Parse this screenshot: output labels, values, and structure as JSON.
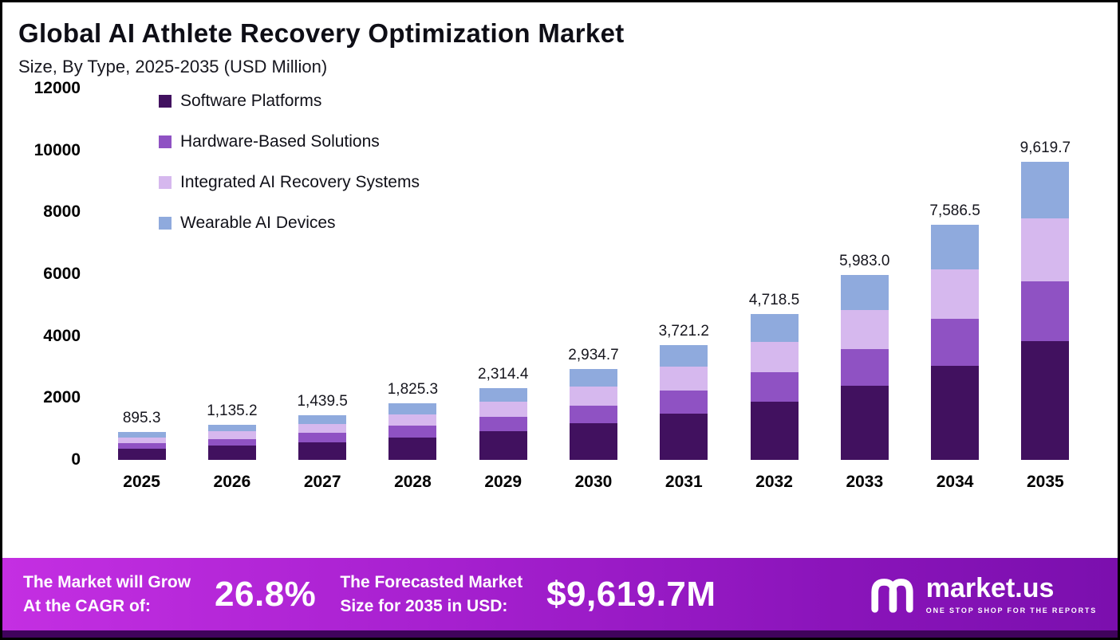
{
  "title": "Global AI Athlete Recovery Optimization Market",
  "subtitle": "Size, By Type, 2025-2035 (USD Million)",
  "chart_data": {
    "type": "bar",
    "stacked": true,
    "title": "Global AI Athlete Recovery Optimization Market",
    "subtitle": "Size, By Type, 2025-2035 (USD Million)",
    "xlabel": "",
    "ylabel": "USD Million",
    "ylim": [
      0,
      12000
    ],
    "yticks": [
      0,
      2000,
      4000,
      6000,
      8000,
      10000,
      12000
    ],
    "grid": false,
    "legend_position": "top-left",
    "categories": [
      "2025",
      "2026",
      "2027",
      "2028",
      "2029",
      "2030",
      "2031",
      "2032",
      "2033",
      "2034",
      "2035"
    ],
    "totals": [
      895.3,
      1135.2,
      1439.5,
      1825.3,
      2314.4,
      2934.7,
      3721.2,
      4718.5,
      5983.0,
      7586.5,
      9619.7
    ],
    "total_labels": [
      "895.3",
      "1,135.2",
      "1,439.5",
      "1,825.3",
      "2,314.4",
      "2,934.7",
      "3,721.2",
      "4,718.5",
      "5,983.0",
      "7,586.5",
      "9,619.7"
    ],
    "series": [
      {
        "name": "Software Platforms",
        "color": "#41115f",
        "values": [
          358.1,
          454.1,
          575.8,
          730.1,
          925.8,
          1173.9,
          1488.5,
          1887.4,
          2393.2,
          3034.6,
          3847.9
        ]
      },
      {
        "name": "Hardware-Based Solutions",
        "color": "#8f52c3",
        "values": [
          179.1,
          227.0,
          287.9,
          365.1,
          462.9,
          586.9,
          744.2,
          943.7,
          1196.6,
          1517.3,
          1923.9
        ]
      },
      {
        "name": "Integrated AI Recovery Systems",
        "color": "#d6b8ee",
        "values": [
          188.0,
          238.4,
          302.3,
          383.3,
          486.0,
          616.3,
          781.5,
          990.9,
          1256.4,
          1593.2,
          2020.1
        ]
      },
      {
        "name": "Wearable AI Devices",
        "color": "#8faadd",
        "values": [
          170.1,
          215.7,
          273.5,
          346.8,
          439.7,
          557.6,
          707.0,
          896.5,
          1136.8,
          1441.4,
          1827.8
        ]
      }
    ]
  },
  "footer": {
    "cagr_label_line1": "The Market will Grow",
    "cagr_label_line2": "At the CAGR of:",
    "cagr_value": "26.8%",
    "forecast_label_line1": "The Forecasted Market",
    "forecast_label_line2": "Size for 2035 in USD:",
    "forecast_value": "$9,619.7M",
    "brand_name": "market.us",
    "brand_tagline": "ONE STOP SHOP FOR THE REPORTS"
  }
}
